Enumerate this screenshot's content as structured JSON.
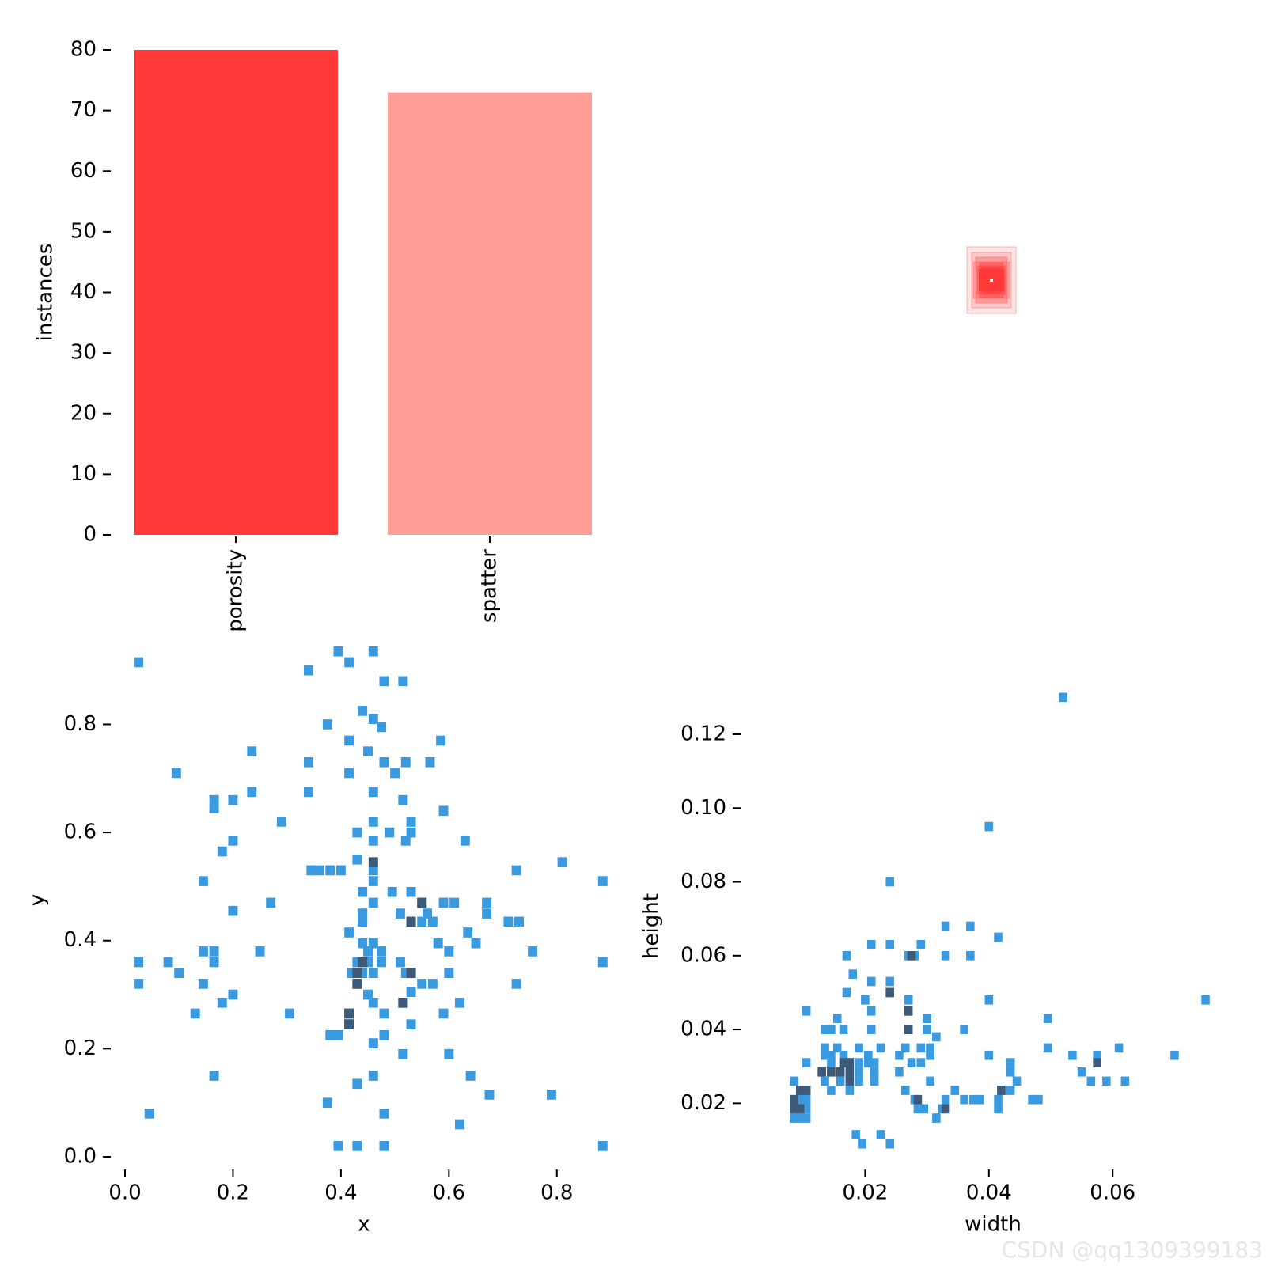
{
  "watermark": "CSDN @qq1309399183",
  "chart_data": [
    {
      "type": "bar",
      "categories": [
        "porosity",
        "spatter"
      ],
      "values": [
        80,
        73
      ],
      "colors": [
        "#ff3838",
        "#ff9d97"
      ],
      "ylabel": "instances",
      "ylim": [
        0,
        80
      ],
      "yticks": [
        0,
        10,
        20,
        30,
        40,
        50,
        60,
        70,
        80
      ],
      "grid": false
    },
    {
      "type": "scatter",
      "subtype": "bounding-box overlay",
      "color": "#ff3838",
      "axes_visible": false
    },
    {
      "type": "heatmap",
      "subtype": "2d-histogram",
      "xlabel": "x",
      "ylabel": "y",
      "xlim": [
        0,
        0.9
      ],
      "ylim": [
        0,
        0.95
      ],
      "xticks": [
        0.0,
        0.2,
        0.4,
        0.6,
        0.8
      ],
      "yticks": [
        0.0,
        0.2,
        0.4,
        0.6,
        0.8
      ],
      "bin_width": 0.0175,
      "bin_height": 0.0185,
      "colors": {
        "low": "#3a9ae0",
        "high": "#3d5a78"
      },
      "bins": [
        [
          0.025,
          0.915
        ],
        [
          0.395,
          0.935
        ],
        [
          0.415,
          0.915
        ],
        [
          0.46,
          0.935
        ],
        [
          0.34,
          0.9
        ],
        [
          0.48,
          0.88
        ],
        [
          0.515,
          0.88
        ],
        [
          0.44,
          0.825
        ],
        [
          0.46,
          0.81
        ],
        [
          0.375,
          0.8
        ],
        [
          0.475,
          0.795
        ],
        [
          0.415,
          0.77
        ],
        [
          0.585,
          0.77
        ],
        [
          0.45,
          0.75
        ],
        [
          0.235,
          0.75
        ],
        [
          0.095,
          0.71
        ],
        [
          0.34,
          0.73
        ],
        [
          0.48,
          0.73
        ],
        [
          0.52,
          0.73
        ],
        [
          0.565,
          0.73
        ],
        [
          0.415,
          0.71
        ],
        [
          0.5,
          0.71
        ],
        [
          0.34,
          0.675
        ],
        [
          0.235,
          0.675
        ],
        [
          0.46,
          0.675
        ],
        [
          0.165,
          0.66
        ],
        [
          0.2,
          0.66
        ],
        [
          0.515,
          0.66
        ],
        [
          0.165,
          0.645
        ],
        [
          0.59,
          0.64
        ],
        [
          0.29,
          0.62
        ],
        [
          0.46,
          0.62
        ],
        [
          0.43,
          0.6
        ],
        [
          0.49,
          0.6
        ],
        [
          0.53,
          0.62
        ],
        [
          0.53,
          0.6
        ],
        [
          0.46,
          0.585
        ],
        [
          0.52,
          0.585
        ],
        [
          0.2,
          0.585
        ],
        [
          0.63,
          0.585
        ],
        [
          0.18,
          0.565
        ],
        [
          0.43,
          0.55
        ],
        [
          0.81,
          0.545
        ],
        [
          0.345,
          0.53
        ],
        [
          0.36,
          0.53
        ],
        [
          0.38,
          0.53
        ],
        [
          0.4,
          0.53
        ],
        [
          0.46,
          0.53
        ],
        [
          0.725,
          0.53
        ],
        [
          0.145,
          0.51
        ],
        [
          0.46,
          0.51
        ],
        [
          0.885,
          0.51
        ],
        [
          0.44,
          0.49
        ],
        [
          0.495,
          0.49
        ],
        [
          0.53,
          0.49
        ],
        [
          0.55,
          0.47
        ],
        [
          0.46,
          0.47
        ],
        [
          0.27,
          0.47
        ],
        [
          0.59,
          0.47
        ],
        [
          0.61,
          0.47
        ],
        [
          0.67,
          0.47
        ],
        [
          0.2,
          0.455
        ],
        [
          0.44,
          0.45
        ],
        [
          0.51,
          0.45
        ],
        [
          0.56,
          0.45
        ],
        [
          0.67,
          0.45
        ],
        [
          0.53,
          0.435
        ],
        [
          0.55,
          0.435
        ],
        [
          0.57,
          0.435
        ],
        [
          0.44,
          0.435
        ],
        [
          0.71,
          0.435
        ],
        [
          0.73,
          0.435
        ],
        [
          0.415,
          0.415
        ],
        [
          0.635,
          0.415
        ],
        [
          0.44,
          0.395
        ],
        [
          0.46,
          0.395
        ],
        [
          0.58,
          0.395
        ],
        [
          0.65,
          0.395
        ],
        [
          0.145,
          0.38
        ],
        [
          0.165,
          0.38
        ],
        [
          0.25,
          0.38
        ],
        [
          0.45,
          0.38
        ],
        [
          0.475,
          0.38
        ],
        [
          0.6,
          0.38
        ],
        [
          0.755,
          0.38
        ],
        [
          0.165,
          0.36
        ],
        [
          0.43,
          0.36
        ],
        [
          0.45,
          0.36
        ],
        [
          0.475,
          0.36
        ],
        [
          0.51,
          0.36
        ],
        [
          0.025,
          0.36
        ],
        [
          0.08,
          0.36
        ],
        [
          0.885,
          0.36
        ],
        [
          0.42,
          0.34
        ],
        [
          0.44,
          0.34
        ],
        [
          0.46,
          0.34
        ],
        [
          0.52,
          0.34
        ],
        [
          0.53,
          0.34
        ],
        [
          0.1,
          0.34
        ],
        [
          0.6,
          0.34
        ],
        [
          0.025,
          0.32
        ],
        [
          0.145,
          0.32
        ],
        [
          0.43,
          0.32
        ],
        [
          0.55,
          0.32
        ],
        [
          0.57,
          0.32
        ],
        [
          0.725,
          0.32
        ],
        [
          0.53,
          0.305
        ],
        [
          0.2,
          0.3
        ],
        [
          0.45,
          0.3
        ],
        [
          0.18,
          0.285
        ],
        [
          0.46,
          0.285
        ],
        [
          0.515,
          0.285
        ],
        [
          0.62,
          0.285
        ],
        [
          0.13,
          0.265
        ],
        [
          0.305,
          0.265
        ],
        [
          0.415,
          0.265
        ],
        [
          0.48,
          0.265
        ],
        [
          0.59,
          0.265
        ],
        [
          0.415,
          0.245
        ],
        [
          0.53,
          0.245
        ],
        [
          0.38,
          0.225
        ],
        [
          0.395,
          0.225
        ],
        [
          0.48,
          0.225
        ],
        [
          0.46,
          0.21
        ],
        [
          0.515,
          0.19
        ],
        [
          0.6,
          0.19
        ],
        [
          0.165,
          0.15
        ],
        [
          0.46,
          0.15
        ],
        [
          0.64,
          0.15
        ],
        [
          0.43,
          0.135
        ],
        [
          0.675,
          0.115
        ],
        [
          0.79,
          0.115
        ],
        [
          0.375,
          0.1
        ],
        [
          0.045,
          0.08
        ],
        [
          0.48,
          0.08
        ],
        [
          0.62,
          0.06
        ],
        [
          0.395,
          0.02
        ],
        [
          0.43,
          0.02
        ],
        [
          0.48,
          0.02
        ],
        [
          0.885,
          0.02
        ]
      ],
      "dark_bins": [
        [
          0.46,
          0.545
        ],
        [
          0.55,
          0.47
        ],
        [
          0.53,
          0.435
        ],
        [
          0.44,
          0.36
        ],
        [
          0.43,
          0.34
        ],
        [
          0.53,
          0.34
        ],
        [
          0.43,
          0.32
        ],
        [
          0.515,
          0.285
        ],
        [
          0.415,
          0.265
        ],
        [
          0.415,
          0.245
        ]
      ]
    },
    {
      "type": "heatmap",
      "subtype": "2d-histogram",
      "xlabel": "width",
      "ylabel": "height",
      "xlim": [
        0.0,
        0.078
      ],
      "ylim": [
        0.004,
        0.132
      ],
      "xticks": [
        0.02,
        0.04,
        0.06
      ],
      "yticks": [
        0.02,
        0.04,
        0.06,
        0.08,
        0.1,
        0.12
      ],
      "bin_width": 0.00135,
      "bin_height": 0.0025,
      "colors": {
        "low": "#3a9ae0",
        "high": "#3d5a78"
      },
      "bins": [
        [
          0.052,
          0.13
        ],
        [
          0.04,
          0.095
        ],
        [
          0.024,
          0.08
        ],
        [
          0.033,
          0.068
        ],
        [
          0.037,
          0.068
        ],
        [
          0.0415,
          0.065
        ],
        [
          0.021,
          0.063
        ],
        [
          0.024,
          0.063
        ],
        [
          0.029,
          0.063
        ],
        [
          0.017,
          0.06
        ],
        [
          0.027,
          0.06
        ],
        [
          0.028,
          0.06
        ],
        [
          0.033,
          0.06
        ],
        [
          0.037,
          0.06
        ],
        [
          0.018,
          0.055
        ],
        [
          0.021,
          0.053
        ],
        [
          0.024,
          0.053
        ],
        [
          0.017,
          0.05
        ],
        [
          0.024,
          0.05
        ],
        [
          0.02,
          0.048
        ],
        [
          0.027,
          0.048
        ],
        [
          0.04,
          0.048
        ],
        [
          0.075,
          0.048
        ],
        [
          0.0105,
          0.045
        ],
        [
          0.021,
          0.045
        ],
        [
          0.027,
          0.045
        ],
        [
          0.0155,
          0.043
        ],
        [
          0.03,
          0.043
        ],
        [
          0.0495,
          0.043
        ],
        [
          0.0135,
          0.04
        ],
        [
          0.0145,
          0.04
        ],
        [
          0.0165,
          0.04
        ],
        [
          0.021,
          0.04
        ],
        [
          0.027,
          0.04
        ],
        [
          0.03,
          0.04
        ],
        [
          0.036,
          0.04
        ],
        [
          0.0315,
          0.038
        ],
        [
          0.0135,
          0.035
        ],
        [
          0.0155,
          0.035
        ],
        [
          0.019,
          0.035
        ],
        [
          0.0225,
          0.035
        ],
        [
          0.0265,
          0.035
        ],
        [
          0.029,
          0.035
        ],
        [
          0.0305,
          0.035
        ],
        [
          0.0495,
          0.035
        ],
        [
          0.061,
          0.035
        ],
        [
          0.0135,
          0.033
        ],
        [
          0.0145,
          0.033
        ],
        [
          0.0165,
          0.033
        ],
        [
          0.0205,
          0.033
        ],
        [
          0.0255,
          0.033
        ],
        [
          0.0305,
          0.033
        ],
        [
          0.04,
          0.033
        ],
        [
          0.0535,
          0.033
        ],
        [
          0.0575,
          0.033
        ],
        [
          0.07,
          0.033
        ],
        [
          0.0105,
          0.031
        ],
        [
          0.0145,
          0.031
        ],
        [
          0.0165,
          0.031
        ],
        [
          0.0175,
          0.031
        ],
        [
          0.019,
          0.031
        ],
        [
          0.0205,
          0.031
        ],
        [
          0.0215,
          0.031
        ],
        [
          0.0275,
          0.031
        ],
        [
          0.029,
          0.031
        ],
        [
          0.0435,
          0.031
        ],
        [
          0.0575,
          0.031
        ],
        [
          0.013,
          0.0285
        ],
        [
          0.0145,
          0.0285
        ],
        [
          0.016,
          0.0285
        ],
        [
          0.0175,
          0.0285
        ],
        [
          0.019,
          0.0285
        ],
        [
          0.0215,
          0.0285
        ],
        [
          0.0255,
          0.0285
        ],
        [
          0.0435,
          0.0285
        ],
        [
          0.055,
          0.0285
        ],
        [
          0.0085,
          0.026
        ],
        [
          0.0135,
          0.026
        ],
        [
          0.016,
          0.026
        ],
        [
          0.0175,
          0.026
        ],
        [
          0.019,
          0.026
        ],
        [
          0.0215,
          0.026
        ],
        [
          0.0305,
          0.026
        ],
        [
          0.0445,
          0.026
        ],
        [
          0.0565,
          0.026
        ],
        [
          0.059,
          0.026
        ],
        [
          0.062,
          0.026
        ],
        [
          0.0095,
          0.0235
        ],
        [
          0.0105,
          0.0235
        ],
        [
          0.0145,
          0.0235
        ],
        [
          0.0175,
          0.0235
        ],
        [
          0.0265,
          0.0235
        ],
        [
          0.0345,
          0.0235
        ],
        [
          0.042,
          0.0235
        ],
        [
          0.0435,
          0.0235
        ],
        [
          0.0085,
          0.021
        ],
        [
          0.0095,
          0.021
        ],
        [
          0.0105,
          0.021
        ],
        [
          0.028,
          0.021
        ],
        [
          0.033,
          0.021
        ],
        [
          0.036,
          0.021
        ],
        [
          0.0375,
          0.021
        ],
        [
          0.0385,
          0.021
        ],
        [
          0.0415,
          0.021
        ],
        [
          0.047,
          0.021
        ],
        [
          0.048,
          0.021
        ],
        [
          0.0085,
          0.0185
        ],
        [
          0.0095,
          0.0185
        ],
        [
          0.0105,
          0.0185
        ],
        [
          0.0285,
          0.0185
        ],
        [
          0.0295,
          0.0185
        ],
        [
          0.0325,
          0.0185
        ],
        [
          0.0415,
          0.0185
        ],
        [
          0.0085,
          0.016
        ],
        [
          0.0095,
          0.016
        ],
        [
          0.0105,
          0.016
        ],
        [
          0.0315,
          0.016
        ],
        [
          0.0185,
          0.0115
        ],
        [
          0.0225,
          0.0115
        ],
        [
          0.0195,
          0.009
        ],
        [
          0.024,
          0.009
        ]
      ],
      "dark_bins": [
        [
          0.0275,
          0.06
        ],
        [
          0.024,
          0.05
        ],
        [
          0.027,
          0.045
        ],
        [
          0.027,
          0.04
        ],
        [
          0.0165,
          0.031
        ],
        [
          0.0175,
          0.031
        ],
        [
          0.013,
          0.0285
        ],
        [
          0.0145,
          0.0285
        ],
        [
          0.0175,
          0.0285
        ],
        [
          0.016,
          0.0285
        ],
        [
          0.0175,
          0.026
        ],
        [
          0.0575,
          0.031
        ],
        [
          0.0085,
          0.021
        ],
        [
          0.0095,
          0.0235
        ],
        [
          0.0105,
          0.0235
        ],
        [
          0.0285,
          0.021
        ],
        [
          0.0085,
          0.0185
        ],
        [
          0.0095,
          0.0185
        ],
        [
          0.033,
          0.0185
        ],
        [
          0.042,
          0.0235
        ]
      ]
    }
  ]
}
